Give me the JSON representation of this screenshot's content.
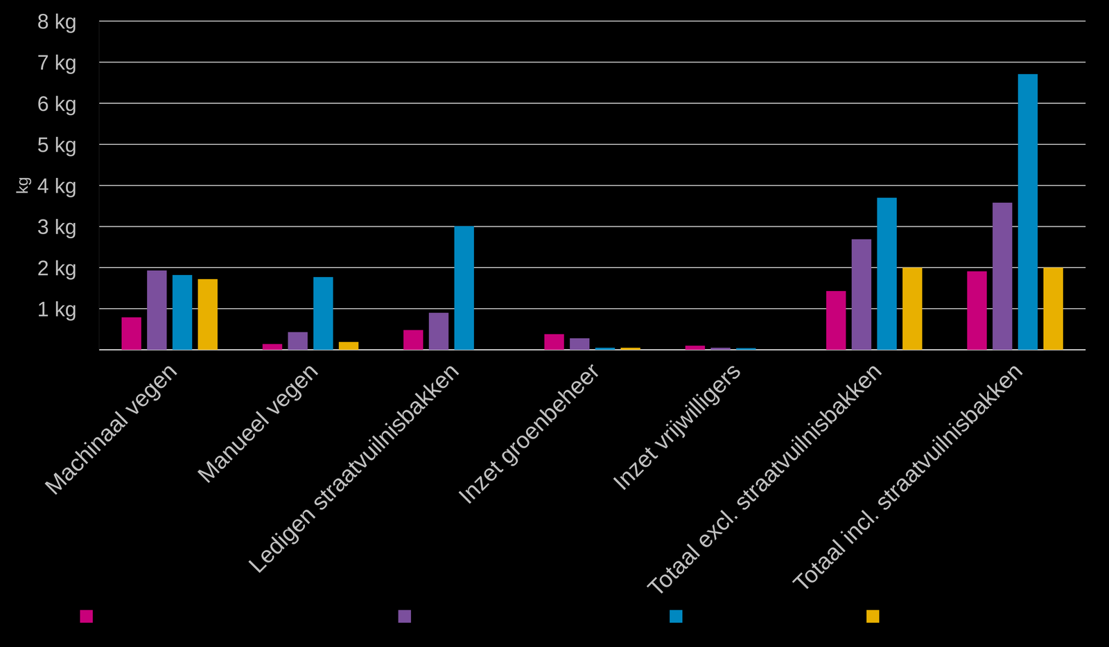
{
  "chart_data": {
    "type": "bar",
    "y_label": "kg",
    "categories": [
      "Machinaal vegen",
      "Manueel vegen",
      "Ledigen straatvuilnisbakken",
      "Inzet groenbeheer",
      "Inzet vrijwilligers",
      "Totaal excl. straatvuilnisbakken",
      "Totaal incl. straatvuilnisbakken"
    ],
    "series": [
      {
        "color": "#c8007a",
        "values": [
          0.79,
          0.14,
          0.48,
          0.38,
          0.1,
          1.43,
          1.91
        ]
      },
      {
        "color": "#7b4f9d",
        "values": [
          1.93,
          0.43,
          0.9,
          0.28,
          0.05,
          2.69,
          3.58
        ]
      },
      {
        "color": "#0088c0",
        "values": [
          1.82,
          1.77,
          3.01,
          0.05,
          0.04,
          3.7,
          6.71
        ]
      },
      {
        "color": "#e8b000",
        "values": [
          1.72,
          0.19,
          null,
          0.05,
          null,
          2.0,
          2.0
        ]
      }
    ],
    "ylim": [
      0,
      8
    ],
    "yticks": [
      {
        "value": 1,
        "label": "1 kg"
      },
      {
        "value": 2,
        "label": "2 kg"
      },
      {
        "value": 3,
        "label": "3 kg"
      },
      {
        "value": 4,
        "label": "4 kg"
      },
      {
        "value": 5,
        "label": "5 kg"
      },
      {
        "value": 6,
        "label": "6 kg"
      },
      {
        "value": 7,
        "label": "7 kg"
      },
      {
        "value": 8,
        "label": "8 kg"
      }
    ],
    "grid": true
  }
}
